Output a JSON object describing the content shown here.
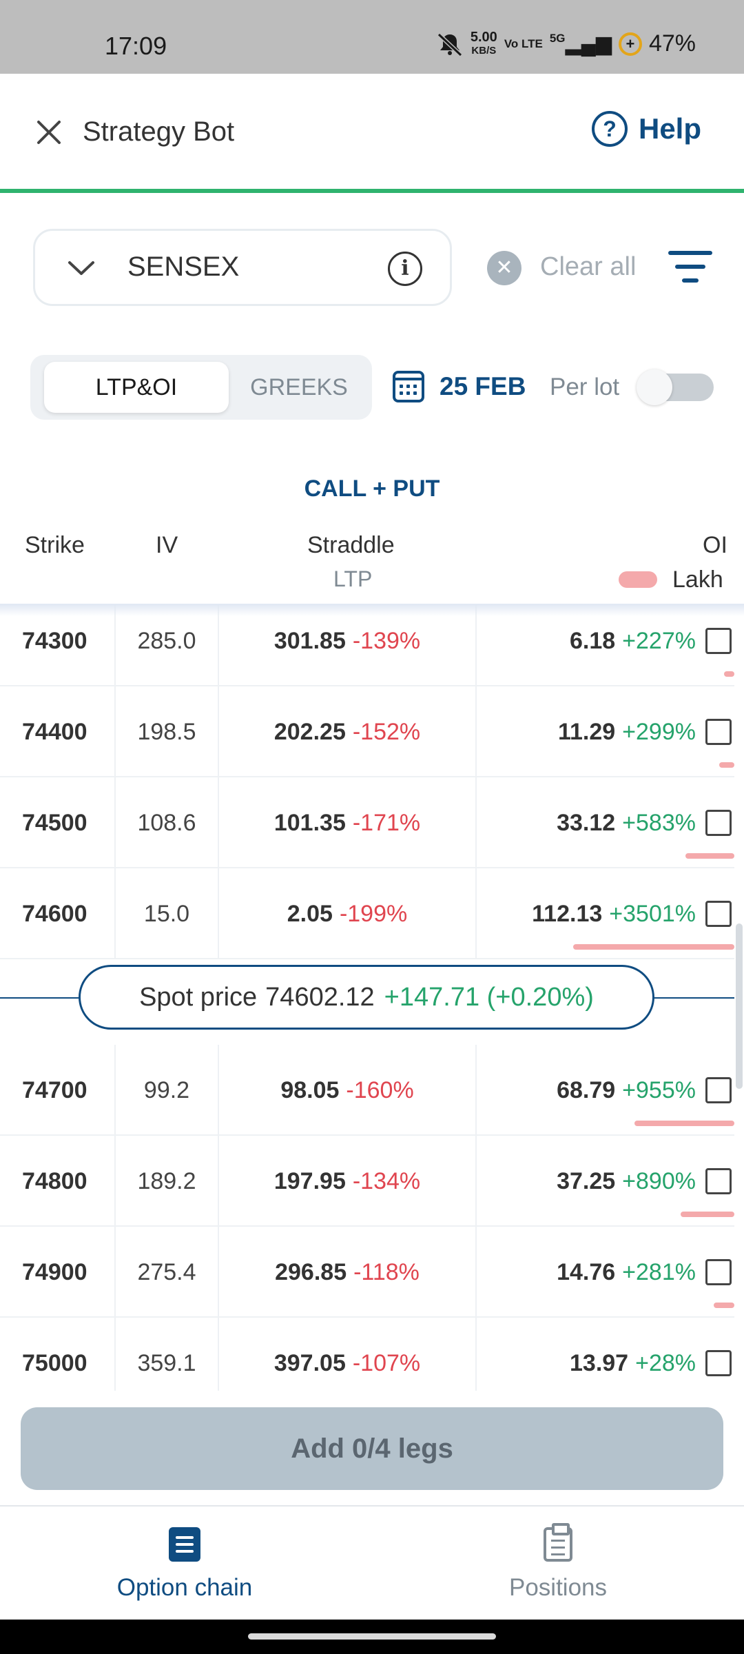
{
  "status_bar": {
    "time": "17:09",
    "net_speed_value": "5.00",
    "net_speed_unit": "KB/S",
    "volte": "Vo LTE",
    "signal": "5G",
    "battery": "47%",
    "icons": [
      "mute-icon",
      "signal-icon",
      "battery-saver-icon"
    ]
  },
  "header": {
    "title": "Strategy Bot",
    "help_label": "Help",
    "accent_color": "#0f4c81",
    "progress_color": "#2fb36e"
  },
  "filters": {
    "symbol": "SENSEX",
    "clear_label": "Clear all"
  },
  "view_toggle": {
    "options": [
      "LTP&OI",
      "GREEKS"
    ],
    "selected": "LTP&OI"
  },
  "expiry": {
    "date": "25 FEB"
  },
  "per_lot": {
    "label": "Per lot",
    "enabled": false
  },
  "table": {
    "section_title": "CALL + PUT",
    "columns": {
      "strike": "Strike",
      "iv": "IV",
      "straddle": "Straddle",
      "straddle_sub": "LTP",
      "oi": "OI",
      "oi_unit": "Lakh"
    },
    "rows_above": [
      {
        "strike": "74300",
        "iv": "285.0",
        "ltp": "301.85",
        "ltp_change": "-139%",
        "oi": "6.18",
        "oi_change": "+227%",
        "oi_bar_fraction": 0.04
      },
      {
        "strike": "74400",
        "iv": "198.5",
        "ltp": "202.25",
        "ltp_change": "-152%",
        "oi": "11.29",
        "oi_change": "+299%",
        "oi_bar_fraction": 0.06
      },
      {
        "strike": "74500",
        "iv": "108.6",
        "ltp": "101.35",
        "ltp_change": "-171%",
        "oi": "33.12",
        "oi_change": "+583%",
        "oi_bar_fraction": 0.19
      },
      {
        "strike": "74600",
        "iv": "15.0",
        "ltp": "2.05",
        "ltp_change": "-199%",
        "oi": "112.13",
        "oi_change": "+3501%",
        "oi_bar_fraction": 0.63
      }
    ],
    "spot": {
      "label": "Spot price",
      "price": "74602.12",
      "change": "+147.71 (+0.20%)"
    },
    "rows_below": [
      {
        "strike": "74700",
        "iv": "99.2",
        "ltp": "98.05",
        "ltp_change": "-160%",
        "oi": "68.79",
        "oi_change": "+955%",
        "oi_bar_fraction": 0.39
      },
      {
        "strike": "74800",
        "iv": "189.2",
        "ltp": "197.95",
        "ltp_change": "-134%",
        "oi": "37.25",
        "oi_change": "+890%",
        "oi_bar_fraction": 0.21
      },
      {
        "strike": "74900",
        "iv": "275.4",
        "ltp": "296.85",
        "ltp_change": "-118%",
        "oi": "14.76",
        "oi_change": "+281%",
        "oi_bar_fraction": 0.08
      },
      {
        "strike": "75000",
        "iv": "359.1",
        "ltp": "397.05",
        "ltp_change": "-107%",
        "oi": "13.97",
        "oi_change": "+28%",
        "oi_bar_fraction": 0.0
      }
    ]
  },
  "footer": {
    "add_button": "Add 0/4 legs"
  },
  "bottom_nav": {
    "items": [
      {
        "label": "Option chain",
        "icon": "list-icon",
        "active": true
      },
      {
        "label": "Positions",
        "icon": "clipboard-icon",
        "active": false
      }
    ]
  }
}
